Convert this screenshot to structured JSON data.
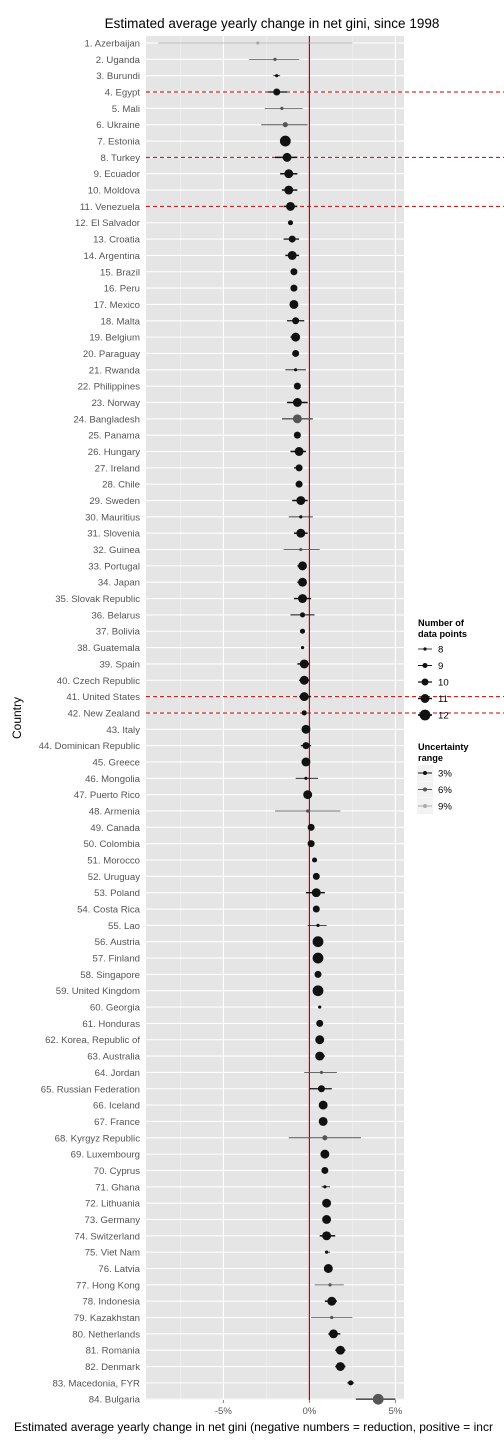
{
  "chart_data": {
    "type": "scatter",
    "title": "Estimated average yearly change in net gini, since 1998",
    "xlabel": "Estimated average yearly change in net gini (negative numbers = reduction, positive = incr",
    "ylabel": "Country",
    "xlim": [
      -0.095,
      0.055
    ],
    "x_ticks": [
      {
        "value": -0.05,
        "label": "-5%"
      },
      {
        "value": 0,
        "label": "0%"
      },
      {
        "value": 0.05,
        "label": "5%"
      }
    ],
    "reference_line": {
      "x": 0,
      "color": "#cc0000"
    },
    "highlighted_countries": [
      "4. Egypt",
      "8. Turkey",
      "11. Venezuela",
      "41. United States",
      "42. New Zealand"
    ],
    "grid": true,
    "legend_position": "right",
    "legend": {
      "size_title": "Number of\ndata points",
      "size_entries": [
        "8",
        "9",
        "10",
        "11",
        "12"
      ],
      "color_title": "Uncertainty\nrange",
      "color_entries": [
        {
          "label": "3%",
          "color": "#111111"
        },
        {
          "label": "6%",
          "color": "#555555"
        },
        {
          "label": "9%",
          "color": "#aaaaaa"
        }
      ]
    },
    "countries": [
      {
        "label": "1. Azerbaijan",
        "value": -0.03,
        "low": -0.088,
        "high": 0.025,
        "n": 8
      },
      {
        "label": "2. Uganda",
        "value": -0.02,
        "low": -0.035,
        "high": -0.006,
        "n": 8
      },
      {
        "label": "3. Burundi",
        "value": -0.019,
        "low": -0.021,
        "high": -0.017,
        "n": 8
      },
      {
        "label": "4. Egypt",
        "value": -0.019,
        "low": -0.024,
        "high": -0.013,
        "n": 10
      },
      {
        "label": "5. Mali",
        "value": -0.016,
        "low": -0.026,
        "high": -0.004,
        "n": 8
      },
      {
        "label": "6. Ukraine",
        "value": -0.014,
        "low": -0.028,
        "high": -0.001,
        "n": 9
      },
      {
        "label": "7. Estonia",
        "value": -0.014,
        "low": -0.016,
        "high": -0.012,
        "n": 12
      },
      {
        "label": "8. Turkey",
        "value": -0.013,
        "low": -0.02,
        "high": -0.007,
        "n": 11
      },
      {
        "label": "9. Ecuador",
        "value": -0.012,
        "low": -0.017,
        "high": -0.007,
        "n": 11
      },
      {
        "label": "10. Moldova",
        "value": -0.012,
        "low": -0.016,
        "high": -0.007,
        "n": 11
      },
      {
        "label": "11. Venezuela",
        "value": -0.011,
        "low": -0.015,
        "high": -0.007,
        "n": 11
      },
      {
        "label": "12. El Salvador",
        "value": -0.011,
        "low": -0.012,
        "high": -0.01,
        "n": 9
      },
      {
        "label": "13. Croatia",
        "value": -0.01,
        "low": -0.015,
        "high": -0.006,
        "n": 10
      },
      {
        "label": "14. Argentina",
        "value": -0.01,
        "low": -0.014,
        "high": -0.006,
        "n": 11
      },
      {
        "label": "15. Brazil",
        "value": -0.009,
        "low": -0.01,
        "high": -0.008,
        "n": 10
      },
      {
        "label": "16. Peru",
        "value": -0.009,
        "low": -0.01,
        "high": -0.008,
        "n": 10
      },
      {
        "label": "17. Mexico",
        "value": -0.009,
        "low": -0.01,
        "high": -0.008,
        "n": 11
      },
      {
        "label": "18. Malta",
        "value": -0.008,
        "low": -0.013,
        "high": -0.003,
        "n": 10
      },
      {
        "label": "19. Belgium",
        "value": -0.008,
        "low": -0.011,
        "high": -0.006,
        "n": 11
      },
      {
        "label": "20. Paraguay",
        "value": -0.008,
        "low": -0.009,
        "high": -0.007,
        "n": 10
      },
      {
        "label": "21. Rwanda",
        "value": -0.008,
        "low": -0.014,
        "high": -0.002,
        "n": 8
      },
      {
        "label": "22. Philippines",
        "value": -0.007,
        "low": -0.008,
        "high": -0.006,
        "n": 10
      },
      {
        "label": "23. Norway",
        "value": -0.007,
        "low": -0.013,
        "high": -0.001,
        "n": 11
      },
      {
        "label": "24. Bangladesh",
        "value": -0.007,
        "low": -0.016,
        "high": 0.002,
        "n": 11
      },
      {
        "label": "25. Panama",
        "value": -0.007,
        "low": -0.008,
        "high": -0.006,
        "n": 10
      },
      {
        "label": "26. Hungary",
        "value": -0.006,
        "low": -0.011,
        "high": -0.002,
        "n": 11
      },
      {
        "label": "27. Ireland",
        "value": -0.006,
        "low": -0.009,
        "high": -0.004,
        "n": 10
      },
      {
        "label": "28. Chile",
        "value": -0.006,
        "low": -0.008,
        "high": -0.004,
        "n": 10
      },
      {
        "label": "29. Sweden",
        "value": -0.005,
        "low": -0.01,
        "high": -0.001,
        "n": 11
      },
      {
        "label": "30. Mauritius",
        "value": -0.005,
        "low": -0.012,
        "high": 0.002,
        "n": 8
      },
      {
        "label": "31. Slovenia",
        "value": -0.005,
        "low": -0.009,
        "high": -0.001,
        "n": 11
      },
      {
        "label": "32. Guinea",
        "value": -0.005,
        "low": -0.015,
        "high": 0.006,
        "n": 8
      },
      {
        "label": "33. Portugal",
        "value": -0.004,
        "low": -0.007,
        "high": -0.002,
        "n": 11
      },
      {
        "label": "34. Japan",
        "value": -0.004,
        "low": -0.007,
        "high": -0.002,
        "n": 11
      },
      {
        "label": "35. Slovak Republic",
        "value": -0.004,
        "low": -0.009,
        "high": 0.001,
        "n": 11
      },
      {
        "label": "36. Belarus",
        "value": -0.004,
        "low": -0.011,
        "high": 0.003,
        "n": 9
      },
      {
        "label": "37. Bolivia",
        "value": -0.004,
        "low": -0.005,
        "high": -0.003,
        "n": 9
      },
      {
        "label": "38. Guatemala",
        "value": -0.004,
        "low": -0.004,
        "high": -0.003,
        "n": 8
      },
      {
        "label": "39. Spain",
        "value": -0.003,
        "low": -0.007,
        "high": 0.0,
        "n": 11
      },
      {
        "label": "40. Czech Republic",
        "value": -0.003,
        "low": -0.006,
        "high": 0.0,
        "n": 11
      },
      {
        "label": "41. United States",
        "value": -0.003,
        "low": -0.006,
        "high": 0.001,
        "n": 11
      },
      {
        "label": "42. New Zealand",
        "value": -0.003,
        "low": -0.004,
        "high": -0.002,
        "n": 9
      },
      {
        "label": "43. Italy",
        "value": -0.002,
        "low": -0.004,
        "high": 0.0,
        "n": 11
      },
      {
        "label": "44. Dominican Republic",
        "value": -0.002,
        "low": -0.005,
        "high": 0.001,
        "n": 10
      },
      {
        "label": "45. Greece",
        "value": -0.002,
        "low": -0.003,
        "high": -0.001,
        "n": 11
      },
      {
        "label": "46. Mongolia",
        "value": -0.002,
        "low": -0.008,
        "high": 0.005,
        "n": 8
      },
      {
        "label": "47. Puerto Rico",
        "value": -0.001,
        "low": -0.002,
        "high": 0.0,
        "n": 11
      },
      {
        "label": "48. Armenia",
        "value": -0.001,
        "low": -0.02,
        "high": 0.018,
        "n": 8
      },
      {
        "label": "49. Canada",
        "value": 0.001,
        "low": 0.0,
        "high": 0.002,
        "n": 10
      },
      {
        "label": "50. Colombia",
        "value": 0.001,
        "low": 0.0,
        "high": 0.002,
        "n": 10
      },
      {
        "label": "51. Morocco",
        "value": 0.003,
        "low": 0.002,
        "high": 0.004,
        "n": 9
      },
      {
        "label": "52. Uruguay",
        "value": 0.004,
        "low": 0.003,
        "high": 0.005,
        "n": 10
      },
      {
        "label": "53. Poland",
        "value": 0.004,
        "low": -0.002,
        "high": 0.009,
        "n": 11
      },
      {
        "label": "54. Costa Rica",
        "value": 0.004,
        "low": 0.003,
        "high": 0.005,
        "n": 10
      },
      {
        "label": "55. Lao",
        "value": 0.005,
        "low": -0.001,
        "high": 0.01,
        "n": 8
      },
      {
        "label": "56. Austria",
        "value": 0.005,
        "low": 0.004,
        "high": 0.006,
        "n": 12
      },
      {
        "label": "57. Finland",
        "value": 0.005,
        "low": 0.004,
        "high": 0.006,
        "n": 12
      },
      {
        "label": "58. Singapore",
        "value": 0.005,
        "low": 0.004,
        "high": 0.006,
        "n": 10
      },
      {
        "label": "59. United Kingdom",
        "value": 0.005,
        "low": 0.004,
        "high": 0.006,
        "n": 12
      },
      {
        "label": "60. Georgia",
        "value": 0.006,
        "low": 0.005,
        "high": 0.006,
        "n": 8
      },
      {
        "label": "61. Honduras",
        "value": 0.006,
        "low": 0.005,
        "high": 0.007,
        "n": 10
      },
      {
        "label": "62. Korea, Republic of",
        "value": 0.006,
        "low": 0.005,
        "high": 0.007,
        "n": 11
      },
      {
        "label": "63. Australia",
        "value": 0.006,
        "low": 0.004,
        "high": 0.009,
        "n": 11
      },
      {
        "label": "64. Jordan",
        "value": 0.007,
        "low": -0.003,
        "high": 0.016,
        "n": 8
      },
      {
        "label": "65. Russian Federation",
        "value": 0.007,
        "low": 0.0,
        "high": 0.013,
        "n": 10
      },
      {
        "label": "66. Iceland",
        "value": 0.008,
        "low": 0.006,
        "high": 0.01,
        "n": 11
      },
      {
        "label": "67. France",
        "value": 0.008,
        "low": 0.007,
        "high": 0.009,
        "n": 11
      },
      {
        "label": "68. Kyrgyz Republic",
        "value": 0.009,
        "low": -0.012,
        "high": 0.03,
        "n": 9
      },
      {
        "label": "69. Luxembourg",
        "value": 0.009,
        "low": 0.008,
        "high": 0.01,
        "n": 11
      },
      {
        "label": "70. Cyprus",
        "value": 0.009,
        "low": 0.008,
        "high": 0.01,
        "n": 10
      },
      {
        "label": "71. Ghana",
        "value": 0.009,
        "low": 0.007,
        "high": 0.012,
        "n": 8
      },
      {
        "label": "72. Lithuania",
        "value": 0.01,
        "low": 0.009,
        "high": 0.011,
        "n": 11
      },
      {
        "label": "73. Germany",
        "value": 0.01,
        "low": 0.009,
        "high": 0.011,
        "n": 11
      },
      {
        "label": "74. Switzerland",
        "value": 0.01,
        "low": 0.006,
        "high": 0.015,
        "n": 11
      },
      {
        "label": "75. Viet Nam",
        "value": 0.01,
        "low": 0.009,
        "high": 0.012,
        "n": 8
      },
      {
        "label": "76. Latvia",
        "value": 0.011,
        "low": 0.009,
        "high": 0.013,
        "n": 11
      },
      {
        "label": "77. Hong Kong",
        "value": 0.012,
        "low": 0.003,
        "high": 0.02,
        "n": 8
      },
      {
        "label": "78. Indonesia",
        "value": 0.013,
        "low": 0.009,
        "high": 0.016,
        "n": 11
      },
      {
        "label": "79. Kazakhstan",
        "value": 0.013,
        "low": 0.001,
        "high": 0.025,
        "n": 8
      },
      {
        "label": "80. Netherlands",
        "value": 0.014,
        "low": 0.011,
        "high": 0.018,
        "n": 11
      },
      {
        "label": "81. Romania",
        "value": 0.018,
        "low": 0.015,
        "high": 0.021,
        "n": 11
      },
      {
        "label": "82. Denmark",
        "value": 0.018,
        "low": 0.015,
        "high": 0.021,
        "n": 11
      },
      {
        "label": "83. Macedonia, FYR",
        "value": 0.024,
        "low": 0.022,
        "high": 0.026,
        "n": 9
      },
      {
        "label": "84. Bulgaria",
        "value": 0.04,
        "low": 0.027,
        "high": 0.05,
        "n": 12
      }
    ]
  }
}
